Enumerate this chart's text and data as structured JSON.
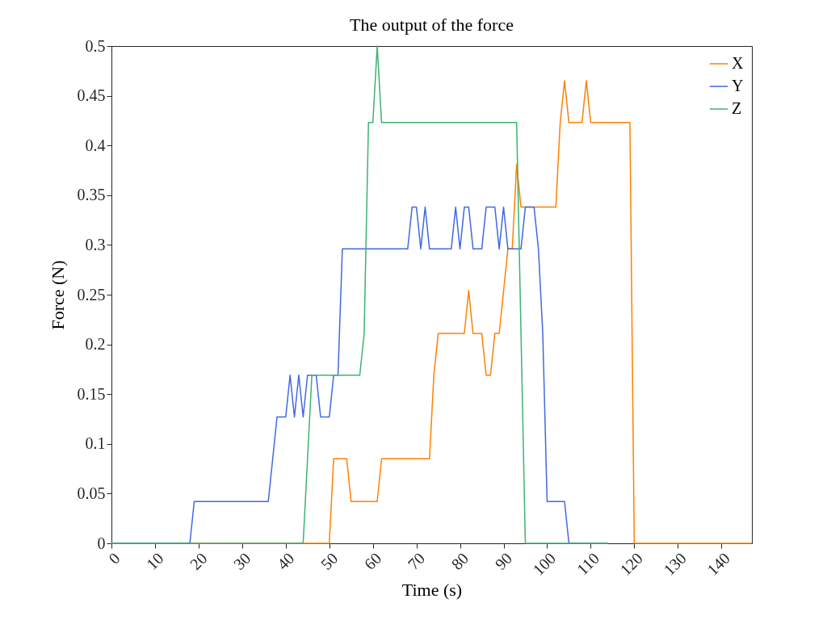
{
  "chart_data": {
    "type": "line",
    "title": "The output of the force",
    "xlabel": "Time (s)",
    "ylabel": "Force (N)",
    "xlim": [
      0,
      147
    ],
    "xticks": [
      0,
      10,
      20,
      30,
      40,
      50,
      60,
      70,
      80,
      90,
      100,
      110,
      120,
      130,
      140
    ],
    "ylim": [
      0,
      0.5
    ],
    "yticks": [
      0,
      0.05,
      0.1,
      0.15,
      0.2,
      0.25,
      0.3,
      0.35,
      0.4,
      0.45,
      0.5
    ],
    "grid": false,
    "legend": "top right",
    "marker": "none",
    "line_style": "solid",
    "series": [
      {
        "name": "X",
        "color": "#ff8000",
        "x": [
          0,
          50,
          51,
          54,
          55,
          61,
          62,
          73,
          74,
          75,
          81,
          82,
          83,
          85,
          86,
          87,
          88,
          89,
          91,
          92,
          93,
          94,
          102,
          103,
          104,
          105,
          108,
          109,
          110,
          119,
          120,
          147
        ],
        "values": [
          0,
          0,
          0.085,
          0.085,
          0.042,
          0.042,
          0.085,
          0.085,
          0.169,
          0.211,
          0.211,
          0.254,
          0.211,
          0.211,
          0.169,
          0.169,
          0.211,
          0.211,
          0.296,
          0.296,
          0.381,
          0.338,
          0.338,
          0.423,
          0.465,
          0.423,
          0.423,
          0.465,
          0.423,
          0.423,
          0,
          0
        ]
      },
      {
        "name": "Y",
        "color": "#4169e1",
        "x": [
          0,
          18,
          19,
          36,
          38,
          40,
          41,
          42,
          43,
          44,
          45,
          47,
          48,
          50,
          51,
          52,
          53,
          68,
          69,
          70,
          71,
          72,
          73,
          78,
          79,
          80,
          81,
          82,
          83,
          85,
          86,
          88,
          89,
          90,
          91,
          94,
          95,
          97,
          98,
          99,
          100,
          104,
          105,
          114
        ],
        "values": [
          0,
          0,
          0.042,
          0.042,
          0.127,
          0.127,
          0.169,
          0.127,
          0.169,
          0.127,
          0.169,
          0.169,
          0.127,
          0.127,
          0.169,
          0.169,
          0.296,
          0.296,
          0.338,
          0.338,
          0.296,
          0.338,
          0.296,
          0.296,
          0.338,
          0.296,
          0.338,
          0.338,
          0.296,
          0.296,
          0.338,
          0.338,
          0.296,
          0.338,
          0.296,
          0.296,
          0.338,
          0.338,
          0.296,
          0.211,
          0.042,
          0.042,
          0,
          0
        ]
      },
      {
        "name": "Z",
        "color": "#3cb371",
        "x": [
          0,
          44,
          46,
          57,
          58,
          59,
          60,
          61,
          62,
          93,
          95,
          114
        ],
        "values": [
          0,
          0,
          0.169,
          0.169,
          0.211,
          0.423,
          0.423,
          0.5,
          0.423,
          0.423,
          0,
          0
        ]
      }
    ]
  }
}
